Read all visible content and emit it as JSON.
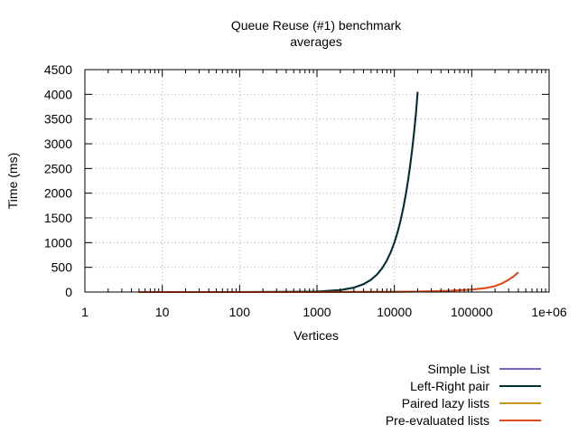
{
  "chart_data": {
    "type": "line",
    "title": "Queue Reuse (#1) benchmark",
    "subtitle": "averages",
    "xlabel": "Vertices",
    "ylabel": "Time (ms)",
    "x_scale": "log",
    "xlim": [
      1,
      1000000
    ],
    "ylim": [
      0,
      4500
    ],
    "x_ticks": [
      1,
      10,
      100,
      1000,
      10000,
      100000,
      1000000
    ],
    "x_tick_labels": [
      "1",
      "10",
      "100",
      "1000",
      "10000",
      "100000",
      "1e+06"
    ],
    "y_ticks": [
      0,
      500,
      1000,
      1500,
      2000,
      2500,
      3000,
      3500,
      4000,
      4500
    ],
    "y_tick_labels": [
      "0",
      "500",
      "1000",
      "1500",
      "2000",
      "2500",
      "3000",
      "3500",
      "4000",
      "4500"
    ],
    "grid": true,
    "legend_position": "bottom-right outside",
    "series": [
      {
        "name": "Simple List",
        "color": "#7060c8",
        "x": [
          5,
          10,
          50,
          100,
          500,
          1000,
          2000,
          3000,
          4000,
          5000,
          6000,
          7000,
          8000,
          9000,
          10000,
          11000,
          12000,
          13000,
          14000,
          15000,
          16000,
          17000,
          18000,
          19000,
          20000
        ],
        "y": [
          0,
          0,
          1,
          1,
          4,
          10,
          40,
          90,
          160,
          250,
          360,
          490,
          640,
          810,
          1000,
          1210,
          1440,
          1690,
          1960,
          2250,
          2560,
          2890,
          3240,
          3610,
          4050
        ]
      },
      {
        "name": "Left-Right pair",
        "color": "#003030",
        "x": [
          5,
          10,
          50,
          100,
          500,
          1000,
          2000,
          3000,
          4000,
          5000,
          6000,
          7000,
          8000,
          9000,
          10000,
          11000,
          12000,
          13000,
          14000,
          15000,
          16000,
          17000,
          18000,
          19000,
          20000
        ],
        "y": [
          0,
          0,
          1,
          1,
          4,
          10,
          40,
          90,
          160,
          250,
          360,
          490,
          640,
          810,
          1000,
          1210,
          1440,
          1690,
          1960,
          2250,
          2560,
          2890,
          3240,
          3610,
          4050
        ]
      },
      {
        "name": "Paired lazy lists",
        "color": "#c8961e",
        "x": [
          5,
          10,
          100,
          1000,
          10000,
          20000,
          50000,
          100000,
          150000,
          200000,
          250000,
          300000,
          350000,
          400000
        ],
        "y": [
          0,
          0,
          0,
          1,
          5,
          10,
          25,
          50,
          80,
          120,
          180,
          250,
          320,
          400
        ]
      },
      {
        "name": "Pre-evaluated lists",
        "color": "#e04a1e",
        "x": [
          5,
          10,
          100,
          1000,
          10000,
          20000,
          50000,
          100000,
          150000,
          200000,
          250000,
          300000,
          350000,
          400000
        ],
        "y": [
          0,
          0,
          0,
          1,
          5,
          10,
          25,
          50,
          80,
          120,
          180,
          250,
          320,
          400
        ]
      }
    ]
  }
}
